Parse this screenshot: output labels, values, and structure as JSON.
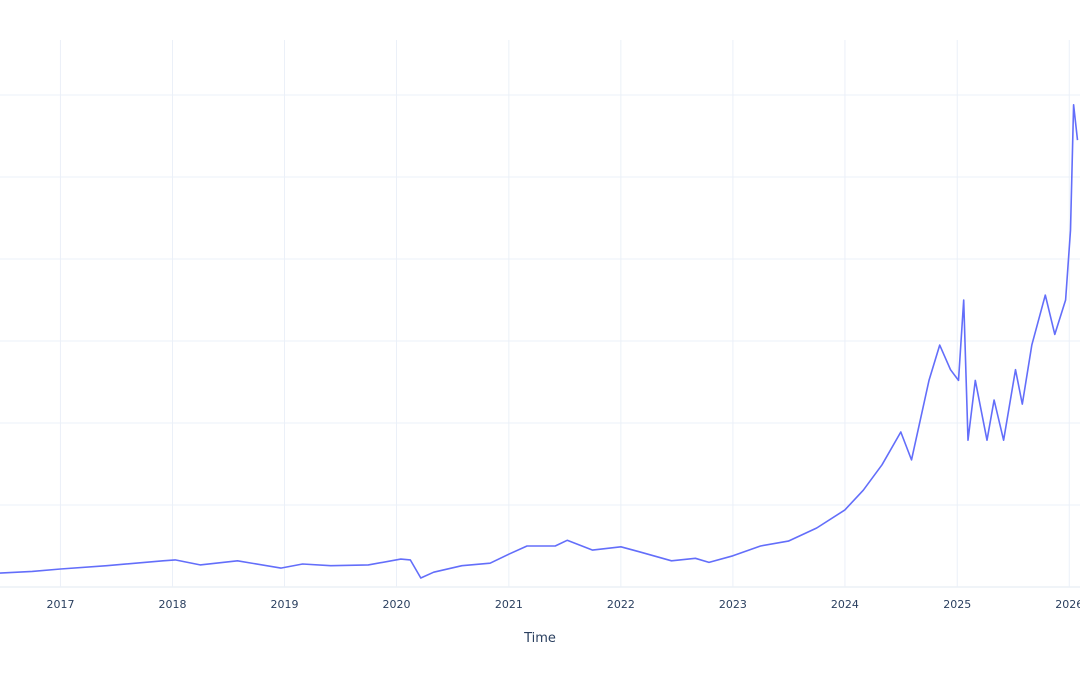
{
  "chart_data": {
    "type": "line",
    "title": "",
    "xlabel": "Time",
    "ylabel": "",
    "y_units_note_visible": false,
    "xlim": [
      "2016-06-18",
      "2026-02-05"
    ],
    "ylim": [
      0,
      6
    ],
    "y_gridlines": [
      0,
      1,
      2,
      3,
      4,
      5,
      6
    ],
    "x_ticks": [
      "2017",
      "2018",
      "2019",
      "2020",
      "2021",
      "2022",
      "2023",
      "2024",
      "2025",
      "2026"
    ],
    "grid": true,
    "line_color": "#636efa",
    "grid_color": "#ebf0f8",
    "tick_color": "#2a3f5f",
    "series": [
      {
        "x": [
          "2016-06-18",
          "2016-10-01",
          "2017-01-01",
          "2017-06-01",
          "2017-12-01",
          "2018-01-10",
          "2018-04-01",
          "2018-08-01",
          "2018-12-20",
          "2019-03-01",
          "2019-06-01",
          "2019-10-01",
          "2020-01-15",
          "2020-02-15",
          "2020-03-20",
          "2020-05-01",
          "2020-08-01",
          "2020-11-01",
          "2021-01-01",
          "2021-03-01",
          "2021-06-01",
          "2021-07-10",
          "2021-10-01",
          "2022-01-01",
          "2022-03-01",
          "2022-06-15",
          "2022-09-01",
          "2022-10-15",
          "2023-01-01",
          "2023-04-01",
          "2023-07-01",
          "2023-10-01",
          "2024-01-01",
          "2024-03-01",
          "2024-05-01",
          "2024-07-01",
          "2024-08-05",
          "2024-10-01",
          "2024-11-05",
          "2024-12-10",
          "2025-01-05",
          "2025-01-22",
          "2025-02-05",
          "2025-03-01",
          "2025-04-08",
          "2025-05-01",
          "2025-06-01",
          "2025-07-10",
          "2025-08-01",
          "2025-09-01",
          "2025-10-15",
          "2025-11-15",
          "2025-12-20",
          "2026-01-05",
          "2026-01-15",
          "2026-01-28"
        ],
        "y": [
          0.17,
          0.19,
          0.22,
          0.26,
          0.32,
          0.33,
          0.27,
          0.32,
          0.23,
          0.28,
          0.26,
          0.27,
          0.34,
          0.33,
          0.11,
          0.18,
          0.26,
          0.29,
          0.4,
          0.5,
          0.5,
          0.57,
          0.45,
          0.49,
          0.43,
          0.32,
          0.35,
          0.3,
          0.38,
          0.5,
          0.56,
          0.72,
          0.94,
          1.18,
          1.49,
          1.89,
          1.55,
          2.52,
          2.95,
          2.65,
          2.52,
          3.5,
          1.79,
          2.52,
          1.79,
          2.28,
          1.79,
          2.65,
          2.23,
          2.95,
          3.56,
          3.08,
          3.5,
          4.35,
          5.88,
          5.45
        ]
      }
    ]
  }
}
